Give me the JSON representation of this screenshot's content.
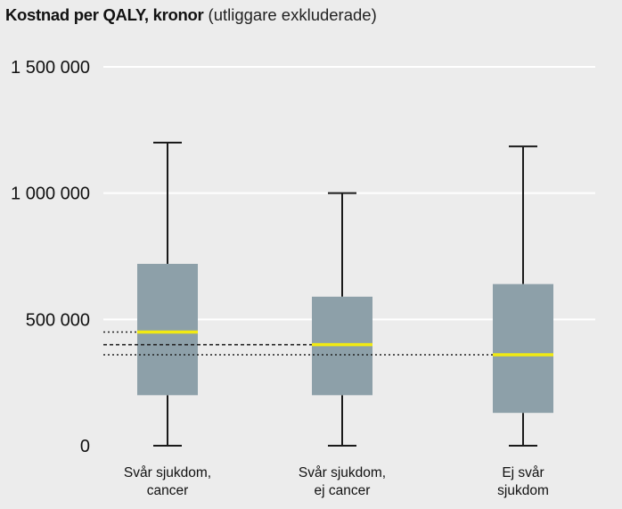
{
  "title": {
    "main": "Kostnad per QALY, kronor",
    "sub": " (utliggare exkluderade)"
  },
  "chart_data": {
    "type": "boxplot",
    "ylim": [
      0,
      1500000
    ],
    "yticks": [
      0,
      500000,
      1000000,
      1500000
    ],
    "ytick_labels": [
      "0",
      "500 000",
      "1 000 000",
      "1 500 000"
    ],
    "grid": true,
    "categories": [
      [
        "Svår sjukdom,",
        "cancer"
      ],
      [
        "Svår sjukdom,",
        "ej cancer"
      ],
      [
        "Ej svår",
        "sjukdom"
      ]
    ],
    "boxes": [
      {
        "min": 0,
        "q1": 200000,
        "median": 450000,
        "q3": 720000,
        "max": 1200000
      },
      {
        "min": 0,
        "q1": 200000,
        "median": 400000,
        "q3": 590000,
        "max": 1000000
      },
      {
        "min": 0,
        "q1": 130000,
        "median": 360000,
        "q3": 640000,
        "max": 1185000
      }
    ],
    "reference_lines": [
      {
        "value": 450000,
        "style": "dotted",
        "to_box": 0
      },
      {
        "value": 400000,
        "style": "dashed",
        "to_box": 1
      },
      {
        "value": 360000,
        "style": "dotted",
        "to_box": 2
      }
    ],
    "colors": {
      "box": "#8da0a9",
      "median": "#f2ea12",
      "whisker": "#1a1a1a",
      "grid": "#ffffff",
      "background": "#ececec"
    }
  }
}
